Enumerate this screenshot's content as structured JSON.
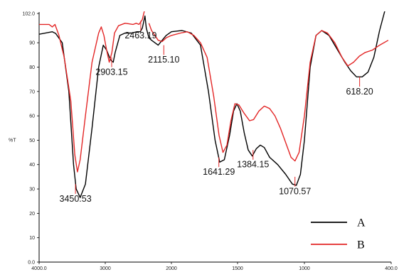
{
  "chart_data": {
    "type": "line",
    "ylabel": "%T",
    "xlim": [
      4000,
      400
    ],
    "ylim": [
      0,
      102
    ],
    "x_ticks": [
      "4000.0",
      "3000",
      "2000",
      "1500",
      "1000",
      "400.0"
    ],
    "y_ticks": [
      "102.0",
      "90",
      "80",
      "70",
      "60",
      "50",
      "40",
      "30",
      "20",
      "10",
      "0.0"
    ],
    "legend_placement": "bottom-right",
    "series": [
      {
        "name": "A",
        "color": "#000000",
        "points": [
          [
            4000,
            93.5
          ],
          [
            3800,
            94.5
          ],
          [
            3750,
            93.8
          ],
          [
            3650,
            90
          ],
          [
            3550,
            70
          ],
          [
            3480,
            40
          ],
          [
            3440,
            30
          ],
          [
            3380,
            26.5
          ],
          [
            3300,
            32
          ],
          [
            3200,
            55
          ],
          [
            3100,
            80
          ],
          [
            3030,
            89
          ],
          [
            2980,
            87
          ],
          [
            2920,
            83
          ],
          [
            2880,
            82
          ],
          [
            2850,
            86
          ],
          [
            2780,
            93
          ],
          [
            2700,
            94
          ],
          [
            2600,
            94
          ],
          [
            2520,
            94.5
          ],
          [
            2470,
            94.5
          ],
          [
            2440,
            96
          ],
          [
            2400,
            101
          ],
          [
            2380,
            96
          ],
          [
            2340,
            92
          ],
          [
            2300,
            91
          ],
          [
            2200,
            89
          ],
          [
            2140,
            91
          ],
          [
            2080,
            93
          ],
          [
            2000,
            94.5
          ],
          [
            1920,
            95
          ],
          [
            1850,
            94
          ],
          [
            1780,
            89
          ],
          [
            1720,
            70
          ],
          [
            1670,
            50
          ],
          [
            1635,
            41
          ],
          [
            1600,
            42
          ],
          [
            1560,
            52
          ],
          [
            1530,
            62
          ],
          [
            1505,
            65
          ],
          [
            1480,
            62
          ],
          [
            1450,
            53
          ],
          [
            1420,
            46
          ],
          [
            1390,
            43.5
          ],
          [
            1360,
            46.5
          ],
          [
            1330,
            48
          ],
          [
            1300,
            47
          ],
          [
            1260,
            43
          ],
          [
            1200,
            40
          ],
          [
            1140,
            36
          ],
          [
            1090,
            32
          ],
          [
            1060,
            31.5
          ],
          [
            1030,
            36
          ],
          [
            1000,
            50
          ],
          [
            960,
            80
          ],
          [
            920,
            93
          ],
          [
            880,
            95
          ],
          [
            830,
            93
          ],
          [
            780,
            88
          ],
          [
            720,
            82
          ],
          [
            680,
            78.5
          ],
          [
            640,
            76
          ],
          [
            600,
            76
          ],
          [
            560,
            78
          ],
          [
            520,
            84
          ],
          [
            480,
            95
          ],
          [
            440,
            104
          ]
        ]
      },
      {
        "name": "B",
        "color": "#e32626",
        "points": [
          [
            4000,
            97.5
          ],
          [
            3850,
            97.5
          ],
          [
            3800,
            96.5
          ],
          [
            3760,
            97.5
          ],
          [
            3700,
            93
          ],
          [
            3620,
            84
          ],
          [
            3520,
            66
          ],
          [
            3460,
            44
          ],
          [
            3420,
            37
          ],
          [
            3380,
            42
          ],
          [
            3300,
            60
          ],
          [
            3200,
            82
          ],
          [
            3100,
            94
          ],
          [
            3060,
            96.5
          ],
          [
            3020,
            93
          ],
          [
            2980,
            87
          ],
          [
            2940,
            82
          ],
          [
            2900,
            86
          ],
          [
            2860,
            94
          ],
          [
            2800,
            97
          ],
          [
            2700,
            98
          ],
          [
            2580,
            97.5
          ],
          [
            2530,
            98
          ],
          [
            2490,
            97.5
          ],
          [
            2440,
            99.5
          ],
          [
            2400,
            104
          ]
        ]
      },
      {
        "name": "B",
        "color": "#e32626",
        "points": [
          [
            2340,
            98
          ],
          [
            2300,
            95
          ],
          [
            2200,
            91
          ],
          [
            2140,
            90.5
          ],
          [
            2080,
            92
          ],
          [
            2000,
            93
          ],
          [
            1930,
            94
          ],
          [
            1880,
            94.5
          ],
          [
            1830,
            93
          ],
          [
            1780,
            90
          ],
          [
            1730,
            84
          ],
          [
            1680,
            68
          ],
          [
            1640,
            52
          ],
          [
            1610,
            45
          ],
          [
            1580,
            48
          ],
          [
            1550,
            58
          ],
          [
            1520,
            65
          ],
          [
            1490,
            64.5
          ],
          [
            1450,
            61
          ],
          [
            1410,
            58
          ],
          [
            1380,
            58.5
          ],
          [
            1340,
            62
          ],
          [
            1300,
            64
          ],
          [
            1260,
            63
          ],
          [
            1220,
            60
          ],
          [
            1180,
            55
          ],
          [
            1140,
            49
          ],
          [
            1100,
            43
          ],
          [
            1070,
            41.5
          ],
          [
            1040,
            45
          ],
          [
            1000,
            60
          ],
          [
            960,
            82
          ],
          [
            920,
            93
          ],
          [
            880,
            95
          ],
          [
            840,
            94
          ],
          [
            790,
            90
          ],
          [
            740,
            84
          ],
          [
            700,
            80.5
          ],
          [
            660,
            82
          ],
          [
            620,
            84.5
          ],
          [
            580,
            86
          ],
          [
            530,
            87
          ],
          [
            480,
            89
          ],
          [
            420,
            91
          ]
        ]
      }
    ],
    "peak_labels": [
      {
        "label": "3450.53",
        "x": 3450.53,
        "y": 26
      },
      {
        "label": "2903.15",
        "x": 2903.15,
        "y": 78
      },
      {
        "label": "2463.19",
        "x": 2463.19,
        "y": 93
      },
      {
        "label": "2115.10",
        "x": 2115.1,
        "y": 83
      },
      {
        "label": "1641.29",
        "x": 1641.29,
        "y": 37
      },
      {
        "label": "1384.15",
        "x": 1384.15,
        "y": 40
      },
      {
        "label": "1070.57",
        "x": 1070.57,
        "y": 29
      },
      {
        "label": "618.20",
        "x": 618.2,
        "y": 70
      }
    ]
  }
}
